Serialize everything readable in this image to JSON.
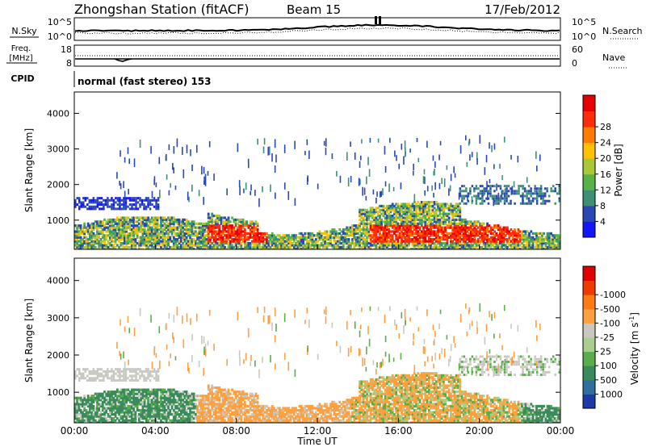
{
  "header": {
    "station": "Zhongshan Station (fitACF)",
    "beam": "Beam 15",
    "date": "17/Feb/2012"
  },
  "panels": {
    "nsky": {
      "label": "N.Sky",
      "ticks": [
        "10^5",
        "10^0"
      ],
      "right_ticks": [
        "10^5",
        "10^0"
      ],
      "right_label": "N.Search"
    },
    "freq": {
      "label_line1": "Freq.",
      "label_line2": "[MHz]",
      "ticks": [
        "18",
        "8"
      ],
      "right_ticks": [
        "60",
        "0"
      ],
      "right_label": "Nave"
    },
    "cpid": {
      "label": "CPID",
      "text": "normal (fast stereo) 153"
    }
  },
  "chart_data": [
    {
      "type": "heatmap",
      "name": "power",
      "ylabel": "Slant Range [km]",
      "xlabel": "",
      "x_ticks": [],
      "y_ticks": [
        "1000",
        "2000",
        "3000",
        "4000"
      ],
      "y_values": [
        1000,
        2000,
        3000,
        4000
      ],
      "ylim": [
        180,
        4600
      ],
      "xlim_hours": [
        0,
        24
      ],
      "colorbar": {
        "label": "Power [dB]",
        "ticks": [
          "4",
          "8",
          "12",
          "16",
          "20",
          "24",
          "28"
        ],
        "colors": [
          "#1414ff",
          "#2a48b4",
          "#3d8f78",
          "#58b248",
          "#a8c838",
          "#ffc000",
          "#ff7a00",
          "#ff2c0a",
          "#e80000"
        ]
      }
    },
    {
      "type": "heatmap",
      "name": "velocity",
      "ylabel": "Slant Range [km]",
      "xlabel": "Time UT",
      "x_ticks": [
        "00:00",
        "04:00",
        "08:00",
        "12:00",
        "16:00",
        "20:00",
        "00:00"
      ],
      "x_values": [
        0,
        4,
        8,
        12,
        16,
        20,
        24
      ],
      "y_ticks": [
        "1000",
        "2000",
        "3000",
        "4000"
      ],
      "y_values": [
        1000,
        2000,
        3000,
        4000
      ],
      "ylim": [
        180,
        4600
      ],
      "xlim_hours": [
        0,
        24
      ],
      "colorbar": {
        "label": "Velocity [m s",
        "label_sup": "-1",
        "label_end": "]",
        "ticks": [
          "1000",
          "500",
          "100",
          "25",
          "-25",
          "-100",
          "-500",
          "-1000"
        ],
        "colors": [
          "#1a3aa8",
          "#2f6fa0",
          "#3a8a5c",
          "#5aae4a",
          "#a8d08c",
          "#c8c8c0",
          "#ffa040",
          "#ff7a10",
          "#f03a00",
          "#e00000"
        ]
      }
    }
  ]
}
